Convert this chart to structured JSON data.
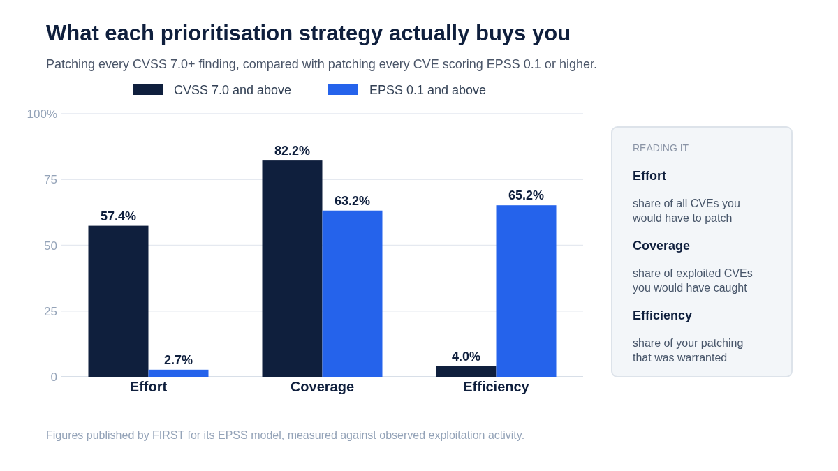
{
  "chart_data": [
    {
      "type": "bar",
      "title": "What each prioritisation strategy actually buys you",
      "subtitle": "Patching every CVSS 7.0+ finding, compared with patching every CVE scoring EPSS 0.1 or higher.",
      "categories": [
        "Effort",
        "Coverage",
        "Efficiency"
      ],
      "series": [
        {
          "name": "CVSS 7.0 and above",
          "color": "#0f1f3d",
          "values": [
            57.4,
            82.2,
            4.0
          ],
          "value_labels": [
            "57.4%",
            "82.2%",
            "4.0%"
          ]
        },
        {
          "name": "EPSS 0.1 and above",
          "color": "#2563eb",
          "values": [
            2.7,
            63.2,
            65.2
          ],
          "value_labels": [
            "2.7%",
            "63.2%",
            "65.2%"
          ]
        }
      ],
      "ylim": [
        0,
        100
      ],
      "yticks": [
        0,
        25,
        50,
        75,
        {
          "value": 100,
          "label": "100%"
        }
      ],
      "grid": "y",
      "legend": "top",
      "annotations": [
        "Figures published by FIRST for its EPSS model, measured against observed exploitation activity."
      ]
    },
    {
      "type": "other",
      "title": "READING IT",
      "annotations": [
        "Effort",
        "share of all CVEs you would have to patch",
        "Coverage",
        "share of exploited CVEs you would have caught",
        "Efficiency",
        "share of your patching that was warranted"
      ]
    }
  ]
}
